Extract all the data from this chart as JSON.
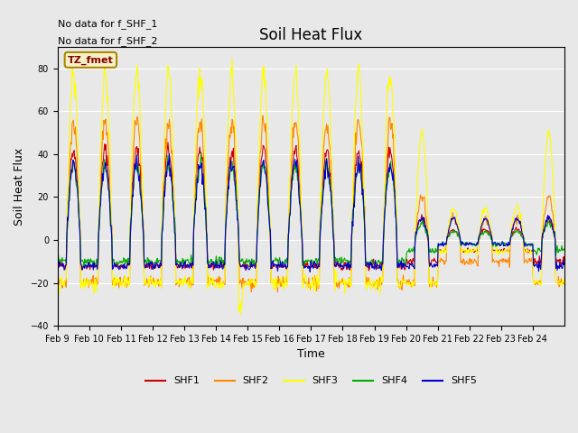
{
  "title": "Soil Heat Flux",
  "ylabel": "Soil Heat Flux",
  "xlabel": "Time",
  "ylim": [
    -40,
    90
  ],
  "yticks": [
    -40,
    -20,
    0,
    20,
    40,
    60,
    80
  ],
  "background_color": "#e8e8e8",
  "plot_bg_color": "#e8e8e8",
  "annotation_text1": "No data for f_SHF_1",
  "annotation_text2": "No data for f_SHF_2",
  "box_label": "TZ_fmet",
  "colors": {
    "SHF1": "#cc0000",
    "SHF2": "#ff8800",
    "SHF3": "#ffff00",
    "SHF4": "#00aa00",
    "SHF5": "#0000cc"
  },
  "xtick_labels": [
    "Feb 9",
    "Feb 10",
    "Feb 11",
    "Feb 12",
    "Feb 13",
    "Feb 14",
    "Feb 15",
    "Feb 16",
    "Feb 17",
    "Feb 18",
    "Feb 19",
    "Feb 20",
    "Feb 21",
    "Feb 22",
    "Feb 23",
    "Feb 24"
  ],
  "legend_entries": [
    "SHF1",
    "SHF2",
    "SHF3",
    "SHF4",
    "SHF5"
  ]
}
